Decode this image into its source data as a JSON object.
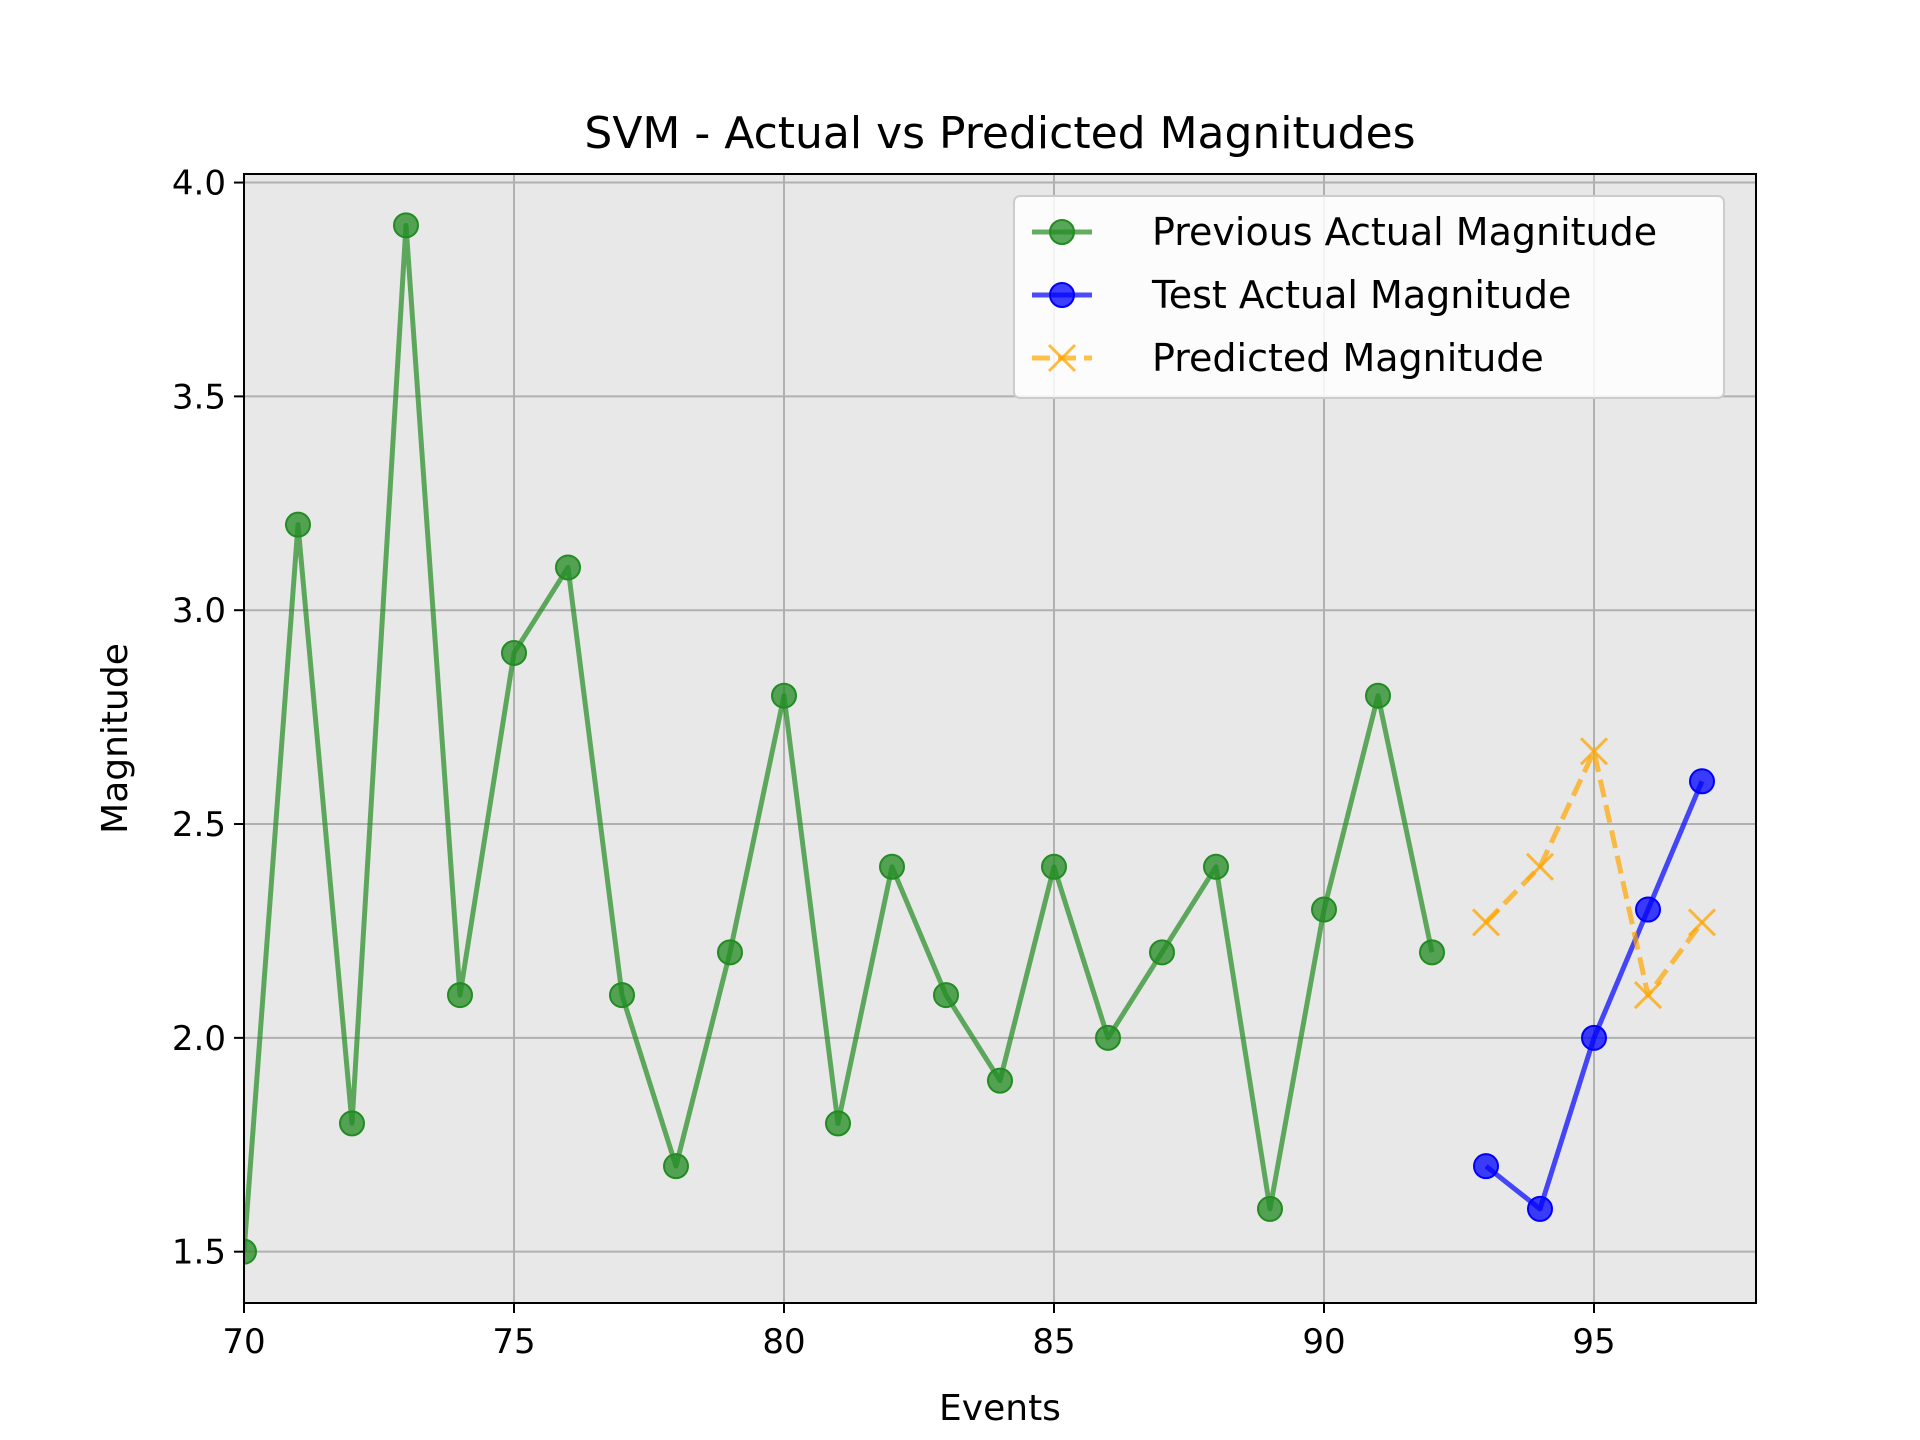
{
  "chart_data": {
    "type": "line",
    "title": "SVM - Actual vs Predicted Magnitudes",
    "xlabel": "Events",
    "ylabel": "Magnitude",
    "xlim": [
      70,
      98
    ],
    "ylim": [
      1.38,
      4.02
    ],
    "xticks": [
      70,
      75,
      80,
      85,
      90,
      95
    ],
    "yticks": [
      1.5,
      2.0,
      2.5,
      3.0,
      3.5,
      4.0
    ],
    "grid": true,
    "background": "#e8e8e8",
    "legend_position": "top-right",
    "series": [
      {
        "name": "Previous Actual Magnitude",
        "color": "#228b22",
        "style": "solid",
        "marker": "circle",
        "x": [
          70,
          71,
          72,
          73,
          74,
          75,
          76,
          77,
          78,
          79,
          80,
          81,
          82,
          83,
          84,
          85,
          86,
          87,
          88,
          89,
          90,
          91,
          92
        ],
        "y": [
          1.5,
          3.2,
          1.8,
          3.9,
          2.1,
          2.9,
          3.1,
          2.1,
          1.7,
          2.2,
          2.8,
          1.8,
          2.4,
          2.1,
          1.9,
          2.4,
          2.0,
          2.2,
          2.4,
          1.6,
          2.3,
          2.8,
          2.2
        ]
      },
      {
        "name": "Test Actual Magnitude",
        "color": "#0000ff",
        "style": "solid",
        "marker": "circle",
        "x": [
          93,
          94,
          95,
          96,
          97
        ],
        "y": [
          1.7,
          1.6,
          2.0,
          2.3,
          2.6
        ]
      },
      {
        "name": "Predicted Magnitude",
        "color": "#ffa500",
        "style": "dashed",
        "marker": "x",
        "x": [
          93,
          94,
          95,
          96,
          97
        ],
        "y": [
          2.27,
          2.4,
          2.67,
          2.1,
          2.27
        ]
      }
    ]
  }
}
